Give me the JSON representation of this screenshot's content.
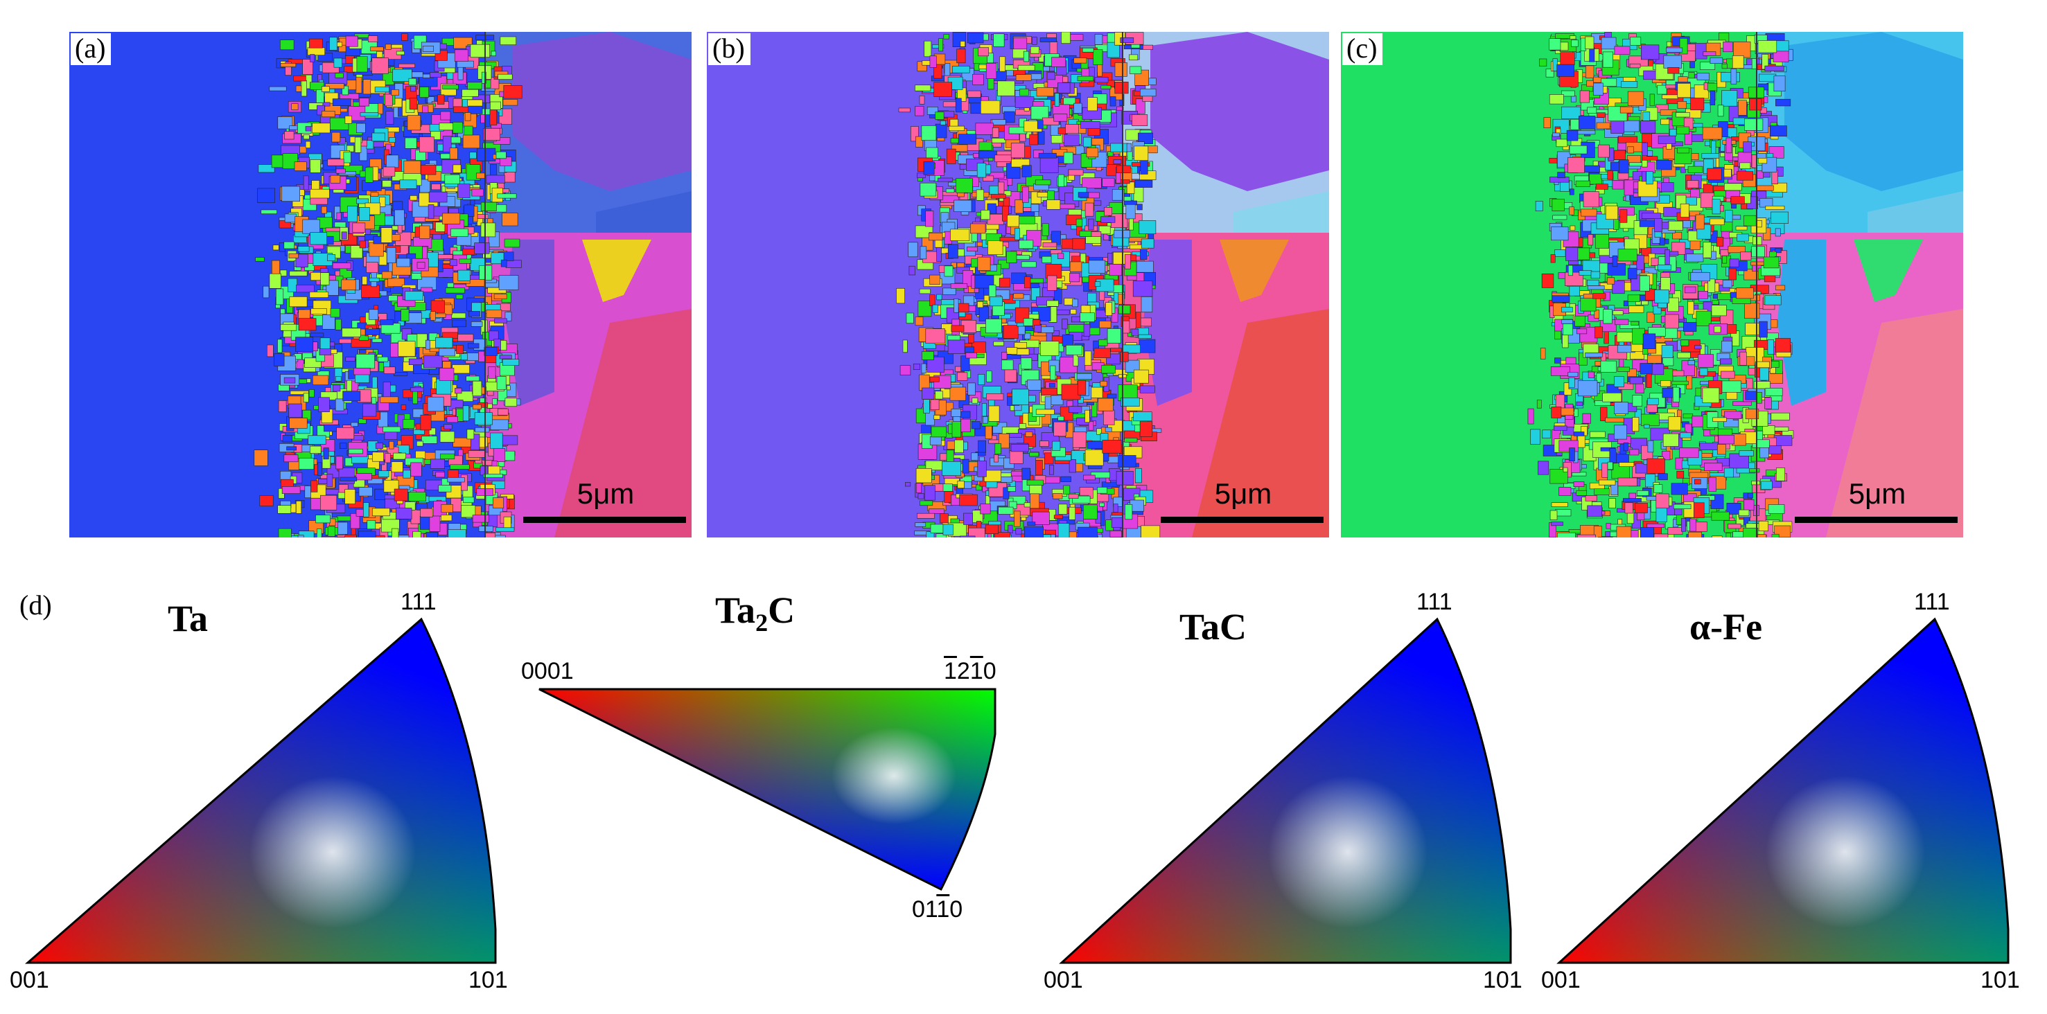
{
  "panels": [
    {
      "label": "(a)",
      "scale_bar": "5μm",
      "ta_color": "#2a46f2",
      "gb_colors": [
        "#4a6ae0",
        "#7a52d8",
        "#3d5fd8",
        "#d84fd0",
        "#e04a80",
        "#ecd020"
      ]
    },
    {
      "label": "(b)",
      "scale_bar": "5μm",
      "ta_color": "#7158f2",
      "gb_colors": [
        "#a6c8ee",
        "#8a52e6",
        "#8ad4ee",
        "#f0569e",
        "#ea5050",
        "#f08a30"
      ]
    },
    {
      "label": "(c)",
      "scale_bar": "5μm",
      "ta_color": "#1fe062",
      "gb_colors": [
        "#46c4ee",
        "#2fa9ea",
        "#6cc8ea",
        "#ea64c8",
        "#f07c98",
        "#30dc70"
      ]
    }
  ],
  "ipf": {
    "label": "(d)",
    "triangles": [
      {
        "title": "Ta",
        "corners": [
          "001",
          "101",
          "111"
        ]
      },
      {
        "title_main": "Ta",
        "title_sub": "2",
        "title_end": "C",
        "corners": [
          "0001",
          "0110",
          "1210"
        ]
      },
      {
        "title": "TaC",
        "corners": [
          "001",
          "101",
          "111"
        ]
      },
      {
        "title": "α-Fe",
        "corners": [
          "001",
          "101",
          "111"
        ]
      }
    ]
  },
  "colors": {
    "red": "#ff0000",
    "green": "#00ff00",
    "blue": "#0000ff"
  }
}
